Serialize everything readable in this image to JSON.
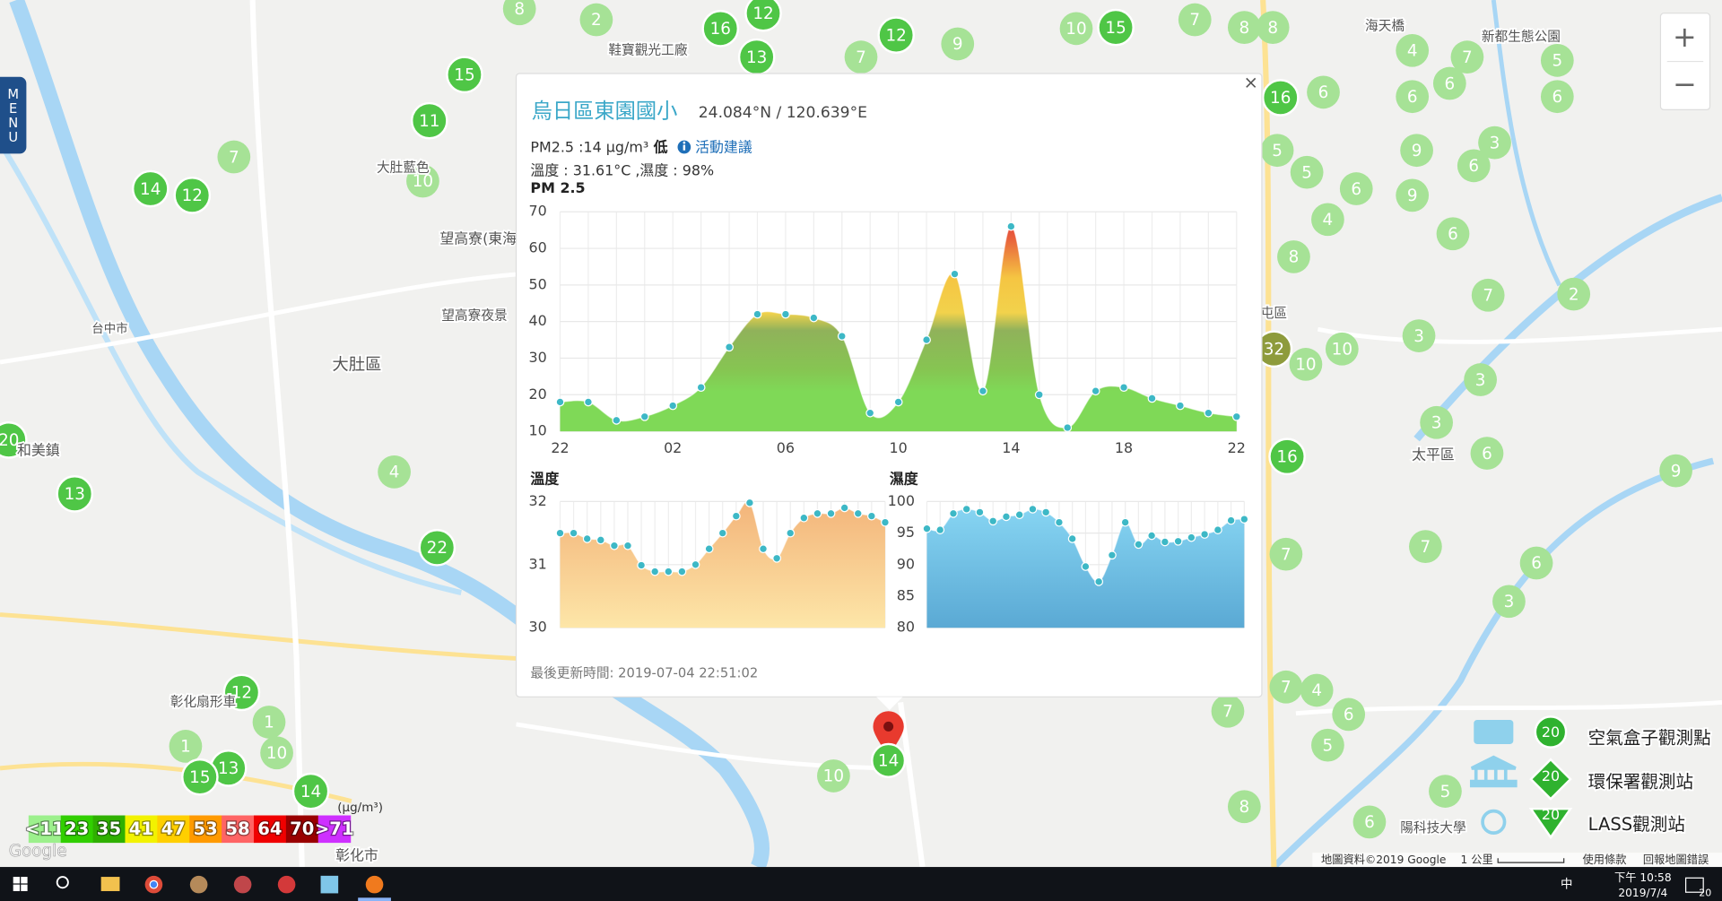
{
  "popup": {
    "title": "烏日區東園國小",
    "coords": "24.084°N / 120.639°E",
    "pm_label": "PM2.5 :14 μg/m³",
    "pm_level": "低",
    "advice": "活動建議",
    "weather": "溫度 : 31.61°C ,濕度 : 98%",
    "updated": "最後更新時間: 2019-07-04 22:51:02",
    "close": "×"
  },
  "chart_data": [
    {
      "type": "area",
      "title": "PM 2.5",
      "categories": [
        "22",
        null,
        null,
        null,
        "02",
        null,
        null,
        null,
        "06",
        null,
        null,
        null,
        "10",
        null,
        null,
        null,
        "14",
        null,
        null,
        null,
        "18",
        null,
        null,
        null,
        "22"
      ],
      "values": [
        18,
        18,
        13,
        14,
        17,
        22,
        33,
        42,
        42,
        41,
        36,
        15,
        18,
        35,
        53,
        21,
        66,
        20,
        11,
        21,
        22,
        19,
        17,
        15,
        14
      ],
      "color": "#3db8c6",
      "ylim": [
        10,
        70
      ],
      "yticks": [
        10,
        20,
        30,
        40,
        50,
        60,
        70
      ],
      "grid": true
    },
    {
      "type": "area",
      "title": "溫度",
      "values": [
        31.5,
        31.5,
        31.41,
        31.39,
        31.3,
        31.3,
        30.99,
        30.89,
        30.89,
        30.89,
        31.0,
        31.25,
        31.5,
        31.77,
        31.98,
        31.25,
        31.1,
        31.5,
        31.74,
        31.81,
        31.81,
        31.9,
        31.81,
        31.77,
        31.67
      ],
      "color": "#3db8c6",
      "ylim": [
        30,
        32
      ],
      "yticks": [
        30,
        31,
        32
      ],
      "grid": true
    },
    {
      "type": "area",
      "title": "濕度",
      "values": [
        95.7,
        95.5,
        98.1,
        98.8,
        98.3,
        96.9,
        97.6,
        97.9,
        98.8,
        98.3,
        96.7,
        94.1,
        89.7,
        87.3,
        91.5,
        96.7,
        93.2,
        94.6,
        93.6,
        93.7,
        94.3,
        94.8,
        95.5,
        97.0,
        97.2
      ],
      "color": "#3db8c6",
      "ylim": [
        80,
        100
      ],
      "yticks": [
        80,
        85,
        90,
        95,
        100
      ],
      "grid": true
    }
  ],
  "map": {
    "markers": [
      8,
      2,
      16,
      12,
      13,
      7,
      12,
      9,
      10,
      15,
      7,
      8,
      8,
      15,
      11,
      7,
      14,
      12,
      10,
      16,
      6,
      4,
      7,
      6,
      5,
      6,
      6,
      9,
      3,
      6,
      9,
      6,
      4,
      6,
      8,
      7,
      2,
      3,
      32,
      10,
      10,
      3,
      3,
      6,
      16,
      9,
      20,
      13,
      4,
      22,
      7,
      7,
      6,
      3,
      12,
      1,
      1,
      10,
      13,
      15,
      14,
      10,
      7,
      4,
      6,
      7,
      5,
      5,
      8,
      6,
      5,
      5
    ],
    "places": [
      "大肚區",
      "和美鎮",
      "彰化市",
      "太平區",
      "望高寮(東海古堡)",
      "望高寮夜景",
      "鞋寶觀光工廠",
      "海天橋",
      "新都生態公園",
      "陽科技大學",
      "大肚藍色",
      "台中市",
      "彰化扇形車",
      "屯區"
    ],
    "pin_marker": 14
  },
  "menu_label": "MENU",
  "zoom": [
    "+",
    "−"
  ],
  "aqi_legend": {
    "unit": "(μg/m³)",
    "items": [
      {
        "label": "<11",
        "color": "#9cf08c"
      },
      {
        "label": "23",
        "color": "#31cf00"
      },
      {
        "label": "35",
        "color": "#2fb000"
      },
      {
        "label": "41",
        "color": "#f2f200"
      },
      {
        "label": "47",
        "color": "#ffcf00"
      },
      {
        "label": "53",
        "color": "#ff9a00"
      },
      {
        "label": "58",
        "color": "#ff6464"
      },
      {
        "label": "64",
        "color": "#f00000"
      },
      {
        "label": "70",
        "color": "#990000"
      },
      {
        "label": ">71",
        "color": "#ce30ff"
      }
    ]
  },
  "station_legend": [
    {
      "label": "空氣盒子觀測點",
      "icon_text": "20"
    },
    {
      "label": "環保署觀測站",
      "icon_text": "20"
    },
    {
      "label": "LASS觀測站",
      "icon_text": "20"
    }
  ],
  "map_footer": [
    "Google",
    "地圖資料©2019 Google",
    "1 公里",
    "使用條款",
    "回報地圖錯誤"
  ],
  "taskbar": {
    "time": "下午 10:58",
    "date": "2019/7/4",
    "ime": "中",
    "notifications": "20"
  }
}
